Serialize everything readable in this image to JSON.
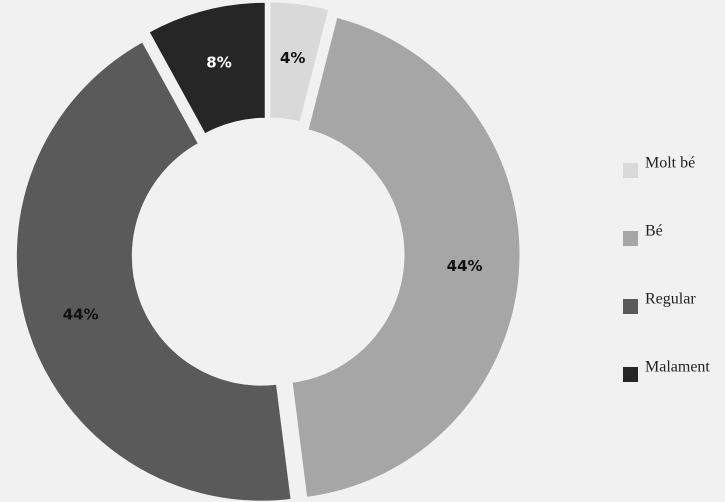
{
  "chart_data": {
    "type": "donut",
    "categories": [
      "Molt bé",
      "Bé",
      "Regular",
      "Malament"
    ],
    "values": [
      4,
      44,
      44,
      8
    ],
    "value_labels": [
      "4%",
      "44%",
      "44%",
      "8%"
    ],
    "colors": [
      "#d9d9d9",
      "#a6a6a6",
      "#5a5a5a",
      "#262626"
    ],
    "legend": "right"
  }
}
